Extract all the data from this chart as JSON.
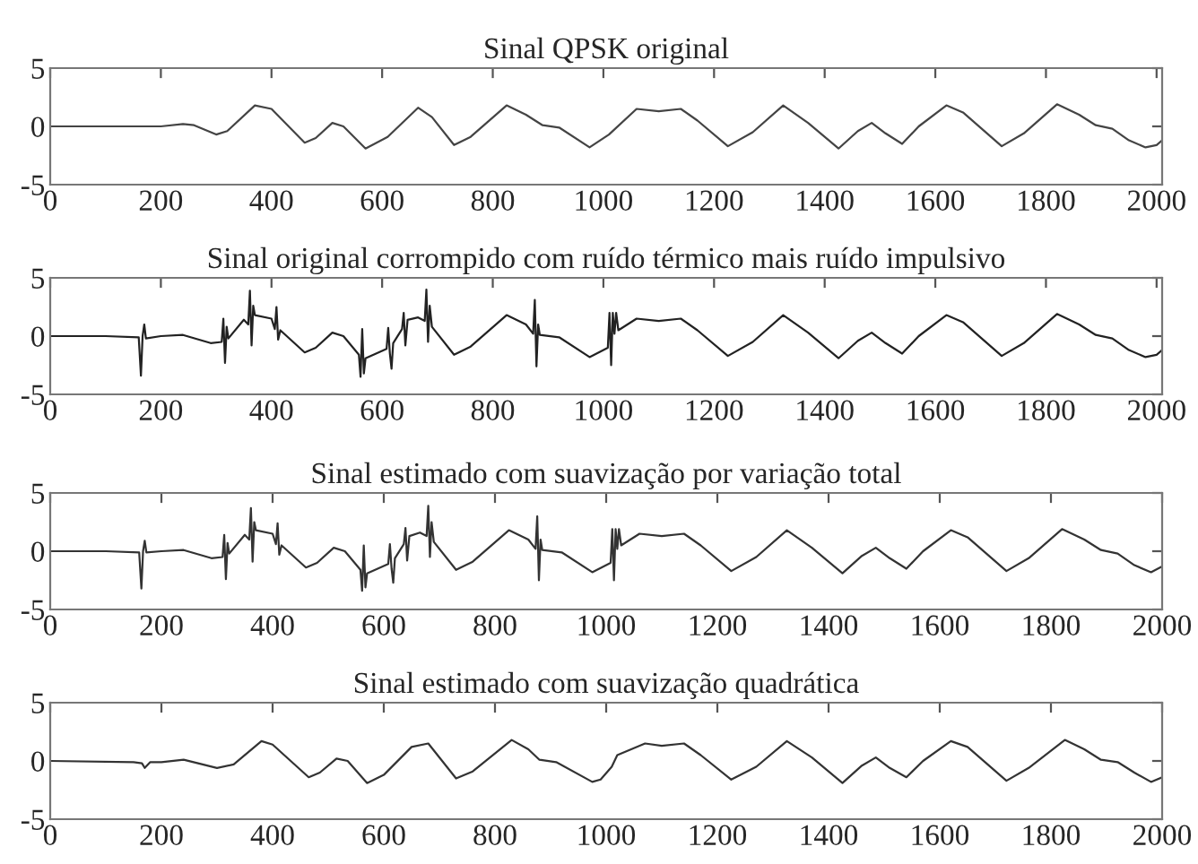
{
  "chart_data": [
    {
      "type": "line",
      "title": "Sinal QPSK original",
      "xlim": [
        0,
        2010
      ],
      "ylim": [
        -5,
        5
      ],
      "xticks": [
        0,
        200,
        400,
        600,
        800,
        1000,
        1200,
        1400,
        1600,
        1800,
        2000
      ],
      "yticks": [
        -5,
        0,
        5
      ],
      "grid": false,
      "series": [
        {
          "color": "#444444",
          "x": [
            0,
            150,
            200,
            240,
            260,
            300,
            320,
            370,
            400,
            460,
            480,
            510,
            530,
            570,
            610,
            665,
            690,
            730,
            760,
            825,
            860,
            890,
            920,
            975,
            1010,
            1060,
            1100,
            1140,
            1170,
            1225,
            1270,
            1325,
            1370,
            1425,
            1460,
            1485,
            1510,
            1540,
            1570,
            1620,
            1650,
            1720,
            1760,
            1820,
            1860,
            1890,
            1920,
            1950,
            1980,
            2000,
            2010
          ],
          "values": [
            0,
            0,
            0,
            0.2,
            0.1,
            -0.7,
            -0.4,
            1.8,
            1.5,
            -1.4,
            -1.0,
            0.3,
            0,
            -1.9,
            -0.9,
            1.6,
            0.8,
            -1.6,
            -0.9,
            1.8,
            1.0,
            0.1,
            -0.1,
            -1.8,
            -0.7,
            1.5,
            1.3,
            1.5,
            0.5,
            -1.7,
            -0.5,
            1.8,
            0.3,
            -1.9,
            -0.4,
            0.3,
            -0.6,
            -1.5,
            0,
            1.8,
            1.2,
            -1.7,
            -0.6,
            1.9,
            1.0,
            0.1,
            -0.2,
            -1.2,
            -1.8,
            -1.6,
            -1.2
          ]
        }
      ]
    },
    {
      "type": "line",
      "title": "Sinal original corrompido com ruído térmico mais ruído impulsivo",
      "xlim": [
        0,
        2010
      ],
      "ylim": [
        -5,
        5
      ],
      "xticks": [
        0,
        200,
        400,
        600,
        800,
        1000,
        1200,
        1400,
        1600,
        1800,
        2000
      ],
      "yticks": [
        -5,
        0,
        5
      ],
      "grid": false,
      "series": [
        {
          "color": "#222222",
          "x": [
            0,
            100,
            160,
            164,
            167,
            170,
            173,
            200,
            240,
            290,
            310,
            313,
            316,
            319,
            322,
            350,
            358,
            361,
            364,
            367,
            370,
            400,
            406,
            409,
            412,
            416,
            460,
            480,
            510,
            530,
            558,
            561,
            564,
            567,
            570,
            608,
            611,
            614,
            617,
            620,
            636,
            639,
            642,
            646,
            665,
            677,
            680,
            683,
            686,
            690,
            730,
            760,
            825,
            860,
            873,
            876,
            879,
            882,
            885,
            920,
            975,
            1008,
            1011,
            1014,
            1017,
            1020,
            1023,
            1027,
            1060,
            1100,
            1140,
            1170,
            1225,
            1270,
            1325,
            1370,
            1425,
            1460,
            1485,
            1510,
            1540,
            1570,
            1620,
            1650,
            1720,
            1760,
            1820,
            1860,
            1890,
            1920,
            1950,
            1980,
            2000,
            2010
          ],
          "values": [
            0,
            0,
            -0.1,
            -3.4,
            0,
            1.0,
            -0.2,
            0,
            0.1,
            -0.6,
            -0.5,
            1.5,
            -2.3,
            0.8,
            -0.2,
            1.4,
            1.0,
            3.9,
            -0.8,
            2.6,
            1.8,
            1.5,
            0.6,
            2.5,
            -0.3,
            0.5,
            -1.4,
            -1.0,
            0.3,
            0,
            -1.6,
            -3.5,
            0.6,
            -3.2,
            -1.9,
            -1.1,
            0.7,
            -1.5,
            -2.8,
            -0.6,
            0.6,
            2.0,
            -0.8,
            1.4,
            1.6,
            1.3,
            4.0,
            -0.5,
            2.6,
            0.8,
            -1.6,
            -0.9,
            1.8,
            1.0,
            0.2,
            3.1,
            -2.6,
            1.0,
            0.1,
            -0.1,
            -1.8,
            -1.0,
            2.0,
            -2.5,
            2.0,
            0.2,
            2.0,
            0.5,
            1.5,
            1.3,
            1.5,
            0.5,
            -1.7,
            -0.5,
            1.8,
            0.3,
            -1.9,
            -0.4,
            0.3,
            -0.6,
            -1.5,
            0,
            1.8,
            1.2,
            -1.7,
            -0.6,
            1.9,
            1.0,
            0.1,
            -0.2,
            -1.2,
            -1.8,
            -1.6,
            -1.2
          ]
        }
      ]
    },
    {
      "type": "line",
      "title": "Sinal estimado com suavização por variação total",
      "xlim": [
        0,
        2000
      ],
      "ylim": [
        -5,
        5
      ],
      "xticks": [
        0,
        200,
        400,
        600,
        800,
        1000,
        1200,
        1400,
        1600,
        1800,
        2000
      ],
      "yticks": [
        -5,
        0,
        5
      ],
      "grid": false,
      "series": [
        {
          "color": "#333333",
          "x": [
            0,
            100,
            160,
            164,
            167,
            170,
            173,
            200,
            240,
            290,
            310,
            313,
            316,
            319,
            322,
            350,
            358,
            361,
            364,
            367,
            370,
            400,
            406,
            409,
            412,
            416,
            460,
            480,
            510,
            530,
            558,
            561,
            564,
            567,
            570,
            608,
            611,
            614,
            617,
            620,
            636,
            639,
            642,
            646,
            665,
            677,
            680,
            683,
            686,
            690,
            730,
            760,
            825,
            860,
            873,
            876,
            879,
            882,
            885,
            920,
            975,
            1008,
            1011,
            1014,
            1017,
            1020,
            1023,
            1027,
            1060,
            1100,
            1140,
            1170,
            1225,
            1270,
            1325,
            1370,
            1425,
            1460,
            1485,
            1510,
            1540,
            1570,
            1620,
            1650,
            1720,
            1760,
            1820,
            1860,
            1890,
            1920,
            1950,
            1980,
            2000
          ],
          "values": [
            0,
            0,
            -0.1,
            -3.2,
            0,
            0.9,
            -0.1,
            0,
            0.1,
            -0.6,
            -0.5,
            1.4,
            -2.4,
            0.7,
            -0.2,
            1.4,
            1.0,
            3.7,
            -0.9,
            2.5,
            1.8,
            1.5,
            0.6,
            2.4,
            -0.3,
            0.5,
            -1.4,
            -1.0,
            0.3,
            0,
            -1.6,
            -3.4,
            0.5,
            -3.1,
            -1.9,
            -1.1,
            0.6,
            -1.5,
            -2.7,
            -0.6,
            0.6,
            2.0,
            -0.8,
            1.3,
            1.6,
            1.3,
            3.9,
            -0.5,
            2.5,
            0.8,
            -1.6,
            -0.9,
            1.8,
            1.0,
            0.2,
            3.0,
            -2.5,
            1.0,
            0.1,
            -0.1,
            -1.8,
            -1.0,
            1.9,
            -2.5,
            1.9,
            0.2,
            1.9,
            0.5,
            1.5,
            1.3,
            1.5,
            0.5,
            -1.7,
            -0.5,
            1.8,
            0.3,
            -1.9,
            -0.4,
            0.3,
            -0.6,
            -1.5,
            0,
            1.8,
            1.2,
            -1.7,
            -0.6,
            1.9,
            1.0,
            0.1,
            -0.2,
            -1.2,
            -1.8,
            -1.3
          ]
        }
      ]
    },
    {
      "type": "line",
      "title": "Sinal estimado com suavização quadrática",
      "xlim": [
        0,
        2000
      ],
      "ylim": [
        -5,
        5
      ],
      "xticks": [
        0,
        200,
        400,
        600,
        800,
        1000,
        1200,
        1400,
        1600,
        1800,
        2000
      ],
      "yticks": [
        -5,
        0,
        5
      ],
      "grid": false,
      "series": [
        {
          "color": "#333333",
          "x": [
            0,
            150,
            165,
            170,
            180,
            200,
            240,
            300,
            330,
            380,
            400,
            465,
            485,
            515,
            535,
            570,
            600,
            650,
            680,
            730,
            760,
            830,
            860,
            880,
            910,
            975,
            990,
            1010,
            1020,
            1070,
            1100,
            1140,
            1170,
            1225,
            1270,
            1325,
            1370,
            1425,
            1460,
            1485,
            1510,
            1540,
            1570,
            1620,
            1650,
            1720,
            1760,
            1825,
            1860,
            1890,
            1920,
            1950,
            1980,
            2000
          ],
          "values": [
            0,
            -0.1,
            -0.2,
            -0.6,
            -0.1,
            -0.1,
            0.1,
            -0.6,
            -0.3,
            1.7,
            1.4,
            -1.4,
            -1.0,
            0.2,
            0,
            -1.9,
            -1.2,
            1.2,
            1.5,
            -1.5,
            -0.9,
            1.8,
            1.0,
            0.1,
            -0.1,
            -1.8,
            -1.6,
            -0.5,
            0.5,
            1.5,
            1.3,
            1.5,
            0.5,
            -1.6,
            -0.5,
            1.7,
            0.3,
            -1.9,
            -0.4,
            0.3,
            -0.6,
            -1.4,
            0,
            1.7,
            1.2,
            -1.7,
            -0.6,
            1.8,
            1.0,
            0.1,
            -0.1,
            -1.0,
            -1.8,
            -1.4
          ]
        }
      ]
    }
  ]
}
